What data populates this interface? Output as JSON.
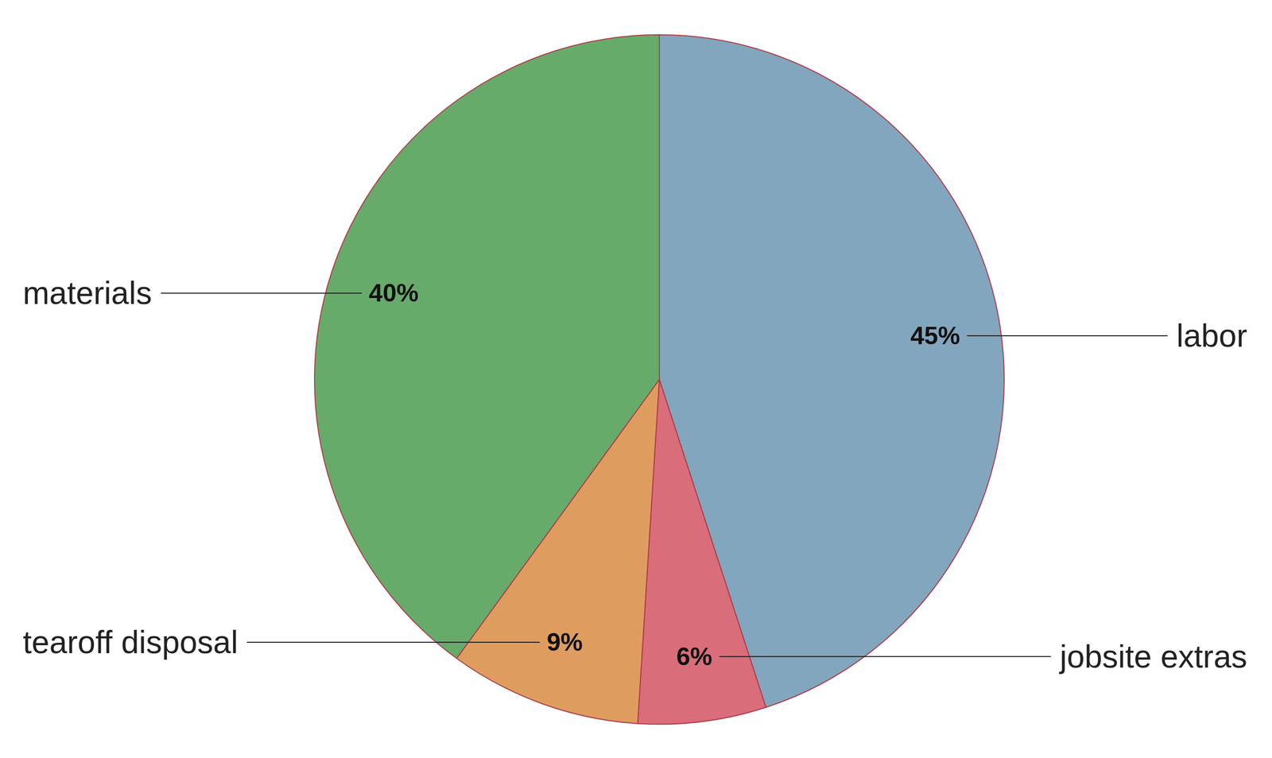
{
  "chart_data": {
    "type": "pie",
    "categories": [
      "labor",
      "jobsite extras",
      "tearoff disposal",
      "materials"
    ],
    "values": [
      45,
      6,
      9,
      40
    ],
    "value_labels": [
      "45%",
      "6%",
      "9%",
      "40%"
    ],
    "colors": [
      "#82a6bd",
      "#d96e7a",
      "#de9d5f",
      "#67ab6a"
    ],
    "data_labels": true
  }
}
